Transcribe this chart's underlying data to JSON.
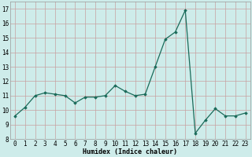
{
  "x": [
    0,
    1,
    2,
    3,
    4,
    5,
    6,
    7,
    8,
    9,
    10,
    11,
    12,
    13,
    14,
    15,
    16,
    17,
    18,
    19,
    20,
    21,
    22,
    23
  ],
  "y": [
    9.6,
    10.2,
    11.0,
    11.2,
    11.1,
    11.0,
    10.5,
    10.9,
    10.9,
    11.0,
    11.7,
    11.3,
    11.0,
    11.1,
    13.0,
    14.9,
    15.4,
    16.9,
    8.4,
    9.3,
    10.1,
    9.6,
    9.6,
    9.8
  ],
  "line_color": "#1a6b5a",
  "marker": "D",
  "marker_size": 1.8,
  "bg_color": "#ceecea",
  "grid_color": "#c8a0a0",
  "xlabel": "Humidex (Indice chaleur)",
  "ylabel_ticks": [
    8,
    9,
    10,
    11,
    12,
    13,
    14,
    15,
    16,
    17
  ],
  "xlim": [
    -0.5,
    23.5
  ],
  "ylim": [
    8,
    17.5
  ],
  "tick_fontsize": 5.5,
  "xlabel_fontsize": 6.0,
  "linewidth": 0.9
}
